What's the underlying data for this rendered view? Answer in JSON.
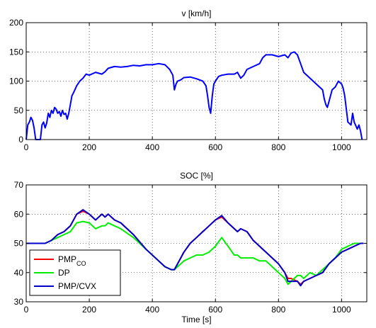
{
  "chart_data": [
    {
      "type": "line",
      "title": "v [km/h]",
      "xlabel": "",
      "ylabel": "",
      "xlim": [
        0,
        1080
      ],
      "ylim": [
        0,
        200
      ],
      "xticks": [
        0,
        200,
        400,
        600,
        800,
        1000
      ],
      "yticks": [
        0,
        50,
        100,
        150,
        200
      ],
      "grid": true,
      "series": [
        {
          "color": "#0000ff",
          "x": [
            0,
            5,
            10,
            15,
            20,
            25,
            30,
            35,
            40,
            45,
            50,
            55,
            60,
            65,
            70,
            75,
            80,
            85,
            90,
            95,
            100,
            105,
            110,
            115,
            120,
            125,
            130,
            135,
            140,
            145,
            150,
            160,
            170,
            180,
            190,
            200,
            220,
            240,
            250,
            260,
            280,
            300,
            320,
            340,
            360,
            380,
            400,
            420,
            440,
            455,
            465,
            470,
            475,
            480,
            490,
            500,
            520,
            540,
            560,
            570,
            575,
            580,
            585,
            590,
            595,
            600,
            610,
            620,
            640,
            660,
            670,
            680,
            690,
            700,
            720,
            740,
            750,
            760,
            780,
            800,
            820,
            830,
            840,
            850,
            860,
            870,
            880,
            900,
            920,
            940,
            945,
            950,
            955,
            960,
            970,
            980,
            990,
            1000,
            1005,
            1010,
            1020,
            1030,
            1035,
            1040,
            1050,
            1055,
            1060,
            1065
          ],
          "y": [
            0,
            25,
            30,
            38,
            33,
            20,
            0,
            0,
            0,
            0,
            25,
            30,
            20,
            28,
            45,
            38,
            50,
            45,
            55,
            52,
            45,
            48,
            40,
            50,
            43,
            45,
            35,
            45,
            60,
            75,
            80,
            92,
            100,
            105,
            112,
            110,
            115,
            112,
            116,
            122,
            125,
            124,
            125,
            127,
            126,
            128,
            128,
            130,
            128,
            120,
            110,
            85,
            95,
            100,
            102,
            106,
            107,
            104,
            100,
            92,
            75,
            55,
            45,
            75,
            95,
            100,
            108,
            110,
            112,
            112,
            115,
            105,
            110,
            120,
            125,
            130,
            140,
            145,
            145,
            142,
            145,
            140,
            148,
            150,
            145,
            130,
            115,
            105,
            95,
            85,
            70,
            60,
            55,
            65,
            85,
            90,
            100,
            95,
            88,
            75,
            30,
            25,
            45,
            30,
            18,
            25,
            15,
            0
          ]
        }
      ]
    },
    {
      "type": "line",
      "title": "SOC [%]",
      "xlabel": "Time [s]",
      "ylabel": "",
      "xlim": [
        0,
        1080
      ],
      "ylim": [
        30,
        70
      ],
      "xticks": [
        0,
        200,
        400,
        600,
        800,
        1000
      ],
      "yticks": [
        30,
        40,
        50,
        60,
        70
      ],
      "grid": true,
      "legend": {
        "placement": "bottom-left",
        "entries": [
          {
            "label": "PMP",
            "sub": "CO",
            "color": "#ff0000"
          },
          {
            "label": "DP",
            "sub": "",
            "color": "#00ee00"
          },
          {
            "label": "PMP/CVX",
            "sub": "",
            "color": "#0000cc"
          }
        ]
      },
      "series": [
        {
          "name": "PMP_CO",
          "color": "#ff0000",
          "x": [
            0,
            60,
            80,
            100,
            120,
            140,
            160,
            180,
            200,
            220,
            240,
            250,
            260,
            280,
            300,
            340,
            380,
            420,
            440,
            460,
            470,
            480,
            500,
            520,
            540,
            560,
            580,
            600,
            620,
            640,
            660,
            670,
            680,
            700,
            720,
            740,
            760,
            780,
            800,
            820,
            830,
            840,
            860,
            870,
            880,
            900,
            920,
            940,
            960,
            980,
            1000,
            1020,
            1040,
            1060,
            1070
          ],
          "y": [
            50,
            50,
            51,
            53,
            54,
            56,
            60,
            61,
            60,
            58,
            60,
            59,
            60,
            58,
            57,
            53,
            48,
            44,
            42,
            41,
            41,
            43,
            47,
            50,
            52,
            54,
            56,
            58,
            59,
            57,
            55,
            54,
            55,
            54,
            51,
            49,
            47,
            45,
            43,
            40,
            38,
            38,
            37,
            36,
            37,
            38,
            39,
            40,
            43,
            45,
            47,
            48,
            49,
            50,
            50
          ]
        },
        {
          "name": "DP",
          "color": "#00ee00",
          "x": [
            0,
            60,
            80,
            100,
            120,
            140,
            160,
            180,
            200,
            220,
            240,
            250,
            260,
            280,
            300,
            340,
            380,
            420,
            440,
            460,
            470,
            480,
            500,
            520,
            540,
            560,
            580,
            600,
            620,
            640,
            660,
            670,
            680,
            700,
            720,
            740,
            760,
            780,
            800,
            820,
            830,
            840,
            860,
            870,
            880,
            900,
            920,
            940,
            960,
            980,
            1000,
            1020,
            1040,
            1060,
            1070
          ],
          "y": [
            50,
            50,
            51,
            52,
            53,
            54,
            57,
            57.5,
            57,
            55,
            56,
            56,
            57,
            56,
            55,
            52,
            48,
            44,
            42,
            41,
            41,
            42,
            44,
            45,
            46,
            46,
            47,
            49,
            52,
            49,
            46,
            46,
            45,
            45,
            45,
            44,
            44,
            42,
            40,
            38,
            36,
            37,
            39,
            39,
            38,
            40,
            39,
            41,
            43,
            45,
            48,
            49,
            50,
            50,
            50
          ]
        },
        {
          "name": "PMP/CVX",
          "color": "#0000cc",
          "x": [
            0,
            60,
            80,
            100,
            120,
            140,
            160,
            180,
            200,
            220,
            240,
            250,
            260,
            280,
            300,
            340,
            380,
            420,
            440,
            460,
            470,
            480,
            500,
            520,
            540,
            560,
            580,
            600,
            620,
            640,
            660,
            670,
            680,
            700,
            720,
            740,
            760,
            780,
            800,
            820,
            830,
            840,
            860,
            870,
            880,
            900,
            920,
            940,
            960,
            980,
            1000,
            1020,
            1040,
            1060,
            1070
          ],
          "y": [
            50,
            50,
            51,
            53,
            54,
            56,
            60,
            61.5,
            60,
            58,
            60,
            59,
            60,
            58,
            57,
            53,
            48,
            44,
            42,
            41,
            41,
            43,
            47,
            50,
            52,
            54,
            56,
            58,
            59.5,
            57,
            55,
            54,
            55,
            54,
            51,
            49,
            47,
            45,
            43,
            40,
            37,
            37,
            37,
            35.5,
            37,
            38,
            39,
            40,
            43,
            45,
            47,
            48,
            49,
            50,
            50
          ]
        }
      ]
    }
  ]
}
